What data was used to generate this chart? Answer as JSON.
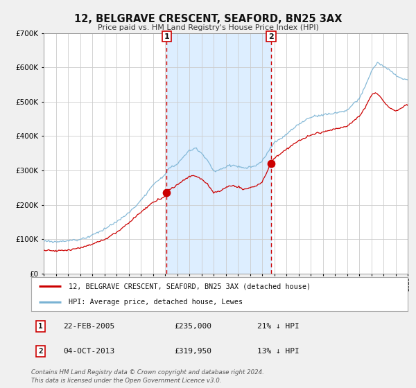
{
  "title": "12, BELGRAVE CRESCENT, SEAFORD, BN25 3AX",
  "subtitle": "Price paid vs. HM Land Registry's House Price Index (HPI)",
  "legend_label_red": "12, BELGRAVE CRESCENT, SEAFORD, BN25 3AX (detached house)",
  "legend_label_blue": "HPI: Average price, detached house, Lewes",
  "transaction1_date": "22-FEB-2005",
  "transaction1_price": 235000,
  "transaction1_pct": "21% ↓ HPI",
  "transaction2_date": "04-OCT-2013",
  "transaction2_price": 319950,
  "transaction2_pct": "13% ↓ HPI",
  "vline1_x": 2005.13,
  "vline2_x": 2013.75,
  "ylim": [
    0,
    700000
  ],
  "xlim_start": 1995,
  "xlim_end": 2025,
  "footer_line1": "Contains HM Land Registry data © Crown copyright and database right 2024.",
  "footer_line2": "This data is licensed under the Open Government Licence v3.0.",
  "hpi_color": "#7ab3d4",
  "price_color": "#cc0000",
  "shade_color": "#ddeeff",
  "grid_color": "#cccccc",
  "axis_bg": "#ffffff",
  "fig_bg": "#f0f0f0"
}
